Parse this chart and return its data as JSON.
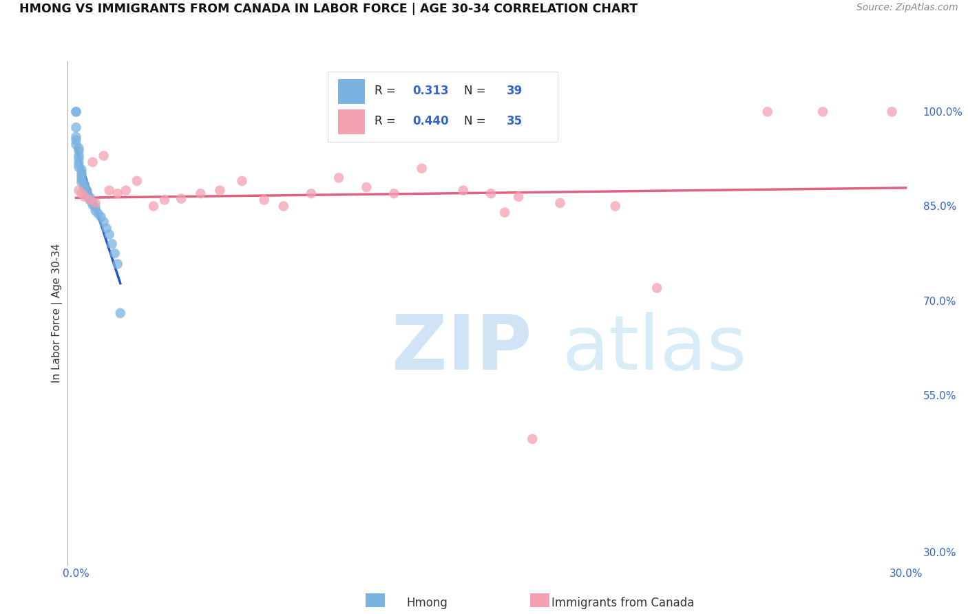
{
  "title": "HMONG VS IMMIGRANTS FROM CANADA IN LABOR FORCE | AGE 30-34 CORRELATION CHART",
  "source": "Source: ZipAtlas.com",
  "ylabel": "In Labor Force | Age 30-34",
  "xlim": [
    -0.003,
    0.305
  ],
  "ylim": [
    0.28,
    1.08
  ],
  "x_ticks": [
    0.0,
    0.05,
    0.1,
    0.15,
    0.2,
    0.25,
    0.3
  ],
  "x_tick_labels": [
    "0.0%",
    "",
    "",
    "",
    "",
    "",
    "30.0%"
  ],
  "y_ticks": [
    0.3,
    0.55,
    0.7,
    0.85,
    1.0
  ],
  "y_tick_labels": [
    "30.0%",
    "55.0%",
    "70.0%",
    "85.0%",
    "100.0%"
  ],
  "hmong_color": "#7ab3e0",
  "canada_color": "#f4a0b0",
  "trendline_blue_color": "#2255cc",
  "trendline_pink_color": "#e06080",
  "legend_r_hmong": "0.313",
  "legend_n_hmong": "39",
  "legend_r_canada": "0.440",
  "legend_n_canada": "35",
  "hmong_x": [
    0.0,
    0.0,
    0.0,
    0.0,
    0.0,
    0.0,
    0.001,
    0.001,
    0.001,
    0.001,
    0.001,
    0.001,
    0.002,
    0.002,
    0.002,
    0.002,
    0.002,
    0.003,
    0.003,
    0.003,
    0.003,
    0.004,
    0.004,
    0.004,
    0.005,
    0.005,
    0.006,
    0.006,
    0.007,
    0.007,
    0.008,
    0.009,
    0.01,
    0.011,
    0.012,
    0.013,
    0.014,
    0.015,
    0.016
  ],
  "hmong_y": [
    1.0,
    1.0,
    0.975,
    0.96,
    0.955,
    0.948,
    0.942,
    0.938,
    0.93,
    0.925,
    0.918,
    0.912,
    0.908,
    0.903,
    0.898,
    0.893,
    0.888,
    0.885,
    0.882,
    0.879,
    0.876,
    0.874,
    0.87,
    0.867,
    0.864,
    0.86,
    0.856,
    0.852,
    0.848,
    0.843,
    0.838,
    0.833,
    0.825,
    0.815,
    0.805,
    0.79,
    0.775,
    0.758,
    0.68
  ],
  "canada_x": [
    0.001,
    0.002,
    0.003,
    0.005,
    0.006,
    0.007,
    0.01,
    0.012,
    0.015,
    0.018,
    0.022,
    0.028,
    0.032,
    0.038,
    0.045,
    0.052,
    0.06,
    0.068,
    0.075,
    0.085,
    0.095,
    0.105,
    0.115,
    0.125,
    0.14,
    0.15,
    0.16,
    0.175,
    0.195,
    0.21,
    0.155,
    0.165,
    0.25,
    0.27,
    0.295
  ],
  "canada_y": [
    0.875,
    0.87,
    0.865,
    0.86,
    0.92,
    0.855,
    0.93,
    0.875,
    0.87,
    0.875,
    0.89,
    0.85,
    0.86,
    0.862,
    0.87,
    0.875,
    0.89,
    0.86,
    0.85,
    0.87,
    0.895,
    0.88,
    0.87,
    0.91,
    0.875,
    0.87,
    0.865,
    0.855,
    0.85,
    0.72,
    0.84,
    0.48,
    1.0,
    1.0,
    1.0
  ]
}
